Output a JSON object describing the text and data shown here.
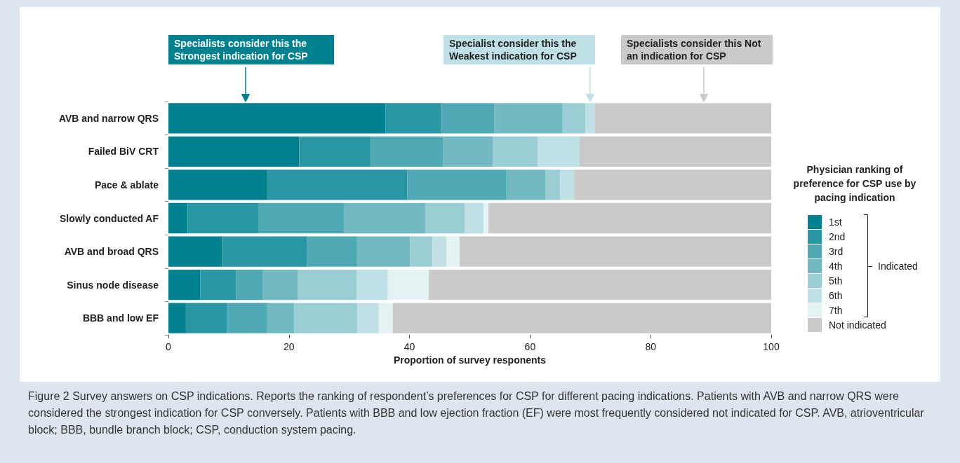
{
  "chart_data": {
    "type": "bar",
    "orientation": "horizontal",
    "stacked": true,
    "categories": [
      "AVB and narrow QRS",
      "Failed BiV CRT",
      "Pace & ablate",
      "Slowly conducted AF",
      "AVB and broad QRS",
      "Sinus node disease",
      "BBB and low EF"
    ],
    "series": [
      {
        "name": "1st",
        "color": "#00818f",
        "values": [
          36,
          21.7,
          16.4,
          3.2,
          8.9,
          5.3,
          2.9
        ]
      },
      {
        "name": "2nd",
        "color": "#2897a3",
        "values": [
          9.2,
          11.9,
          23.2,
          11.8,
          14.1,
          5.9,
          6.8
        ]
      },
      {
        "name": "3rd",
        "color": "#4ea9b4",
        "values": [
          8.9,
          12,
          16.4,
          14.1,
          8.3,
          4.4,
          6.7
        ]
      },
      {
        "name": "4th",
        "color": "#72b9c1",
        "values": [
          11.3,
          8.2,
          6.6,
          13.5,
          8.8,
          5.9,
          4.5
        ]
      },
      {
        "name": "5th",
        "color": "#9acdd4",
        "values": [
          3.8,
          7.5,
          2.4,
          6.6,
          3.7,
          9.7,
          10.4
        ]
      },
      {
        "name": "6th",
        "color": "#bfe0e5",
        "values": [
          1.5,
          6.9,
          2.3,
          3.1,
          2.3,
          5.2,
          3.6
        ]
      },
      {
        "name": "7th",
        "color": "#e4f2f3",
        "values": [
          0,
          0,
          0,
          0.8,
          2.2,
          6.8,
          2.3
        ]
      },
      {
        "name": "Not indicated",
        "color": "#cacaca",
        "values": [
          29.3,
          31.8,
          32.7,
          46.9,
          51.7,
          56.8,
          62.8
        ]
      }
    ],
    "xlabel": "Proportion of survey responents",
    "xlim": [
      0,
      100
    ],
    "xticks": [
      0,
      20,
      40,
      60,
      80,
      100
    ],
    "grid": false,
    "legend": "right",
    "legend_title": "Physician ranking of preference for CSP use by pacing indication",
    "annotations": [
      "Specialists consider this the Strongest indication for CSP",
      "Specialist consider this the Weakest indication for CSP",
      "Specialists consider this Not an indication for CSP",
      "Indicated",
      "Figure 2 Survey answers on CSP indications. Reports the ranking of respondent’s preferences for CSP for different pacing indications. Patients with AVB and narrow QRS were considered the strongest indication for CSP conversely. Patients with BBB and low ejection fraction (EF) were most frequently considered not indicated for CSP. AVB, atrioventricular block; BBB, bundle branch block; CSP, conduction system pacing."
    ]
  }
}
